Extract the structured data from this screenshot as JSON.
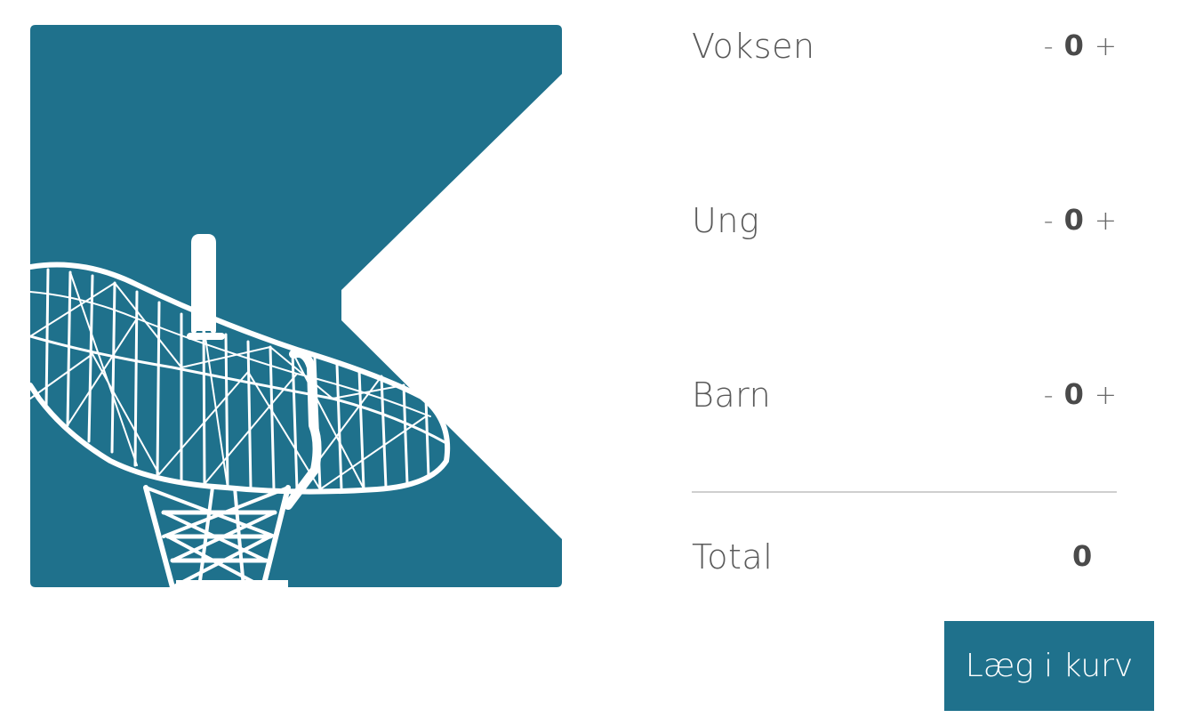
{
  "tickets": [
    {
      "label": "Voksen",
      "minus": "-",
      "quantity": "0",
      "plus": "+"
    },
    {
      "label": "Ung",
      "minus": "-",
      "quantity": "0",
      "plus": "+"
    },
    {
      "label": "Barn",
      "minus": "-",
      "quantity": "0",
      "plus": "+"
    }
  ],
  "total": {
    "label": "Total",
    "value": "0"
  },
  "cart_button": {
    "label": "Læg i kurv"
  },
  "colors": {
    "brand": "#1f718c",
    "text": "#5a5a5a",
    "divider": "#cfcfcf",
    "illustration_lines": "#ffffff"
  },
  "icons": {
    "product_image": "radio-telescope-illustration"
  }
}
